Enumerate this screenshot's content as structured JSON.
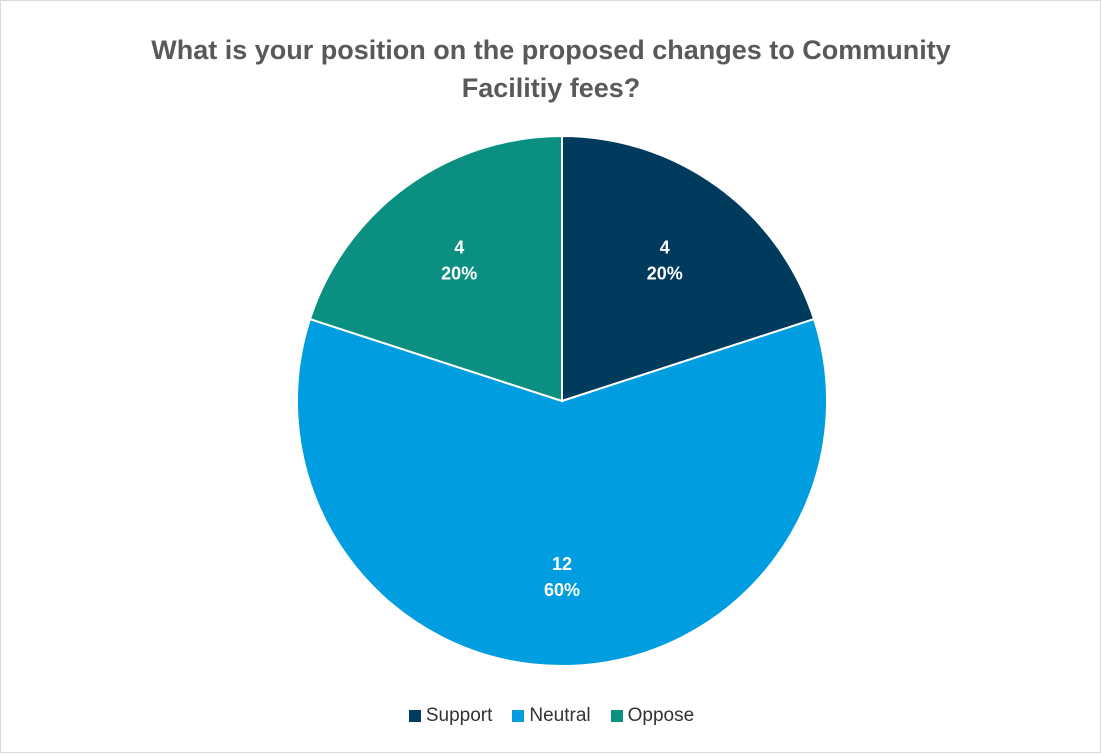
{
  "chart_data": {
    "type": "pie",
    "title": "What is your position on the proposed changes to Community Facilitiy fees?",
    "categories": [
      "Support",
      "Neutral",
      "Oppose"
    ],
    "values": [
      4,
      12,
      4
    ],
    "percent_labels": [
      "20%",
      "60%",
      "20%"
    ],
    "colors": [
      "#003a5c",
      "#009de0",
      "#0b8f80"
    ],
    "data_label_color": "#ffffff",
    "legend_position": "bottom",
    "start_angle": "12 o'clock, clockwise"
  }
}
